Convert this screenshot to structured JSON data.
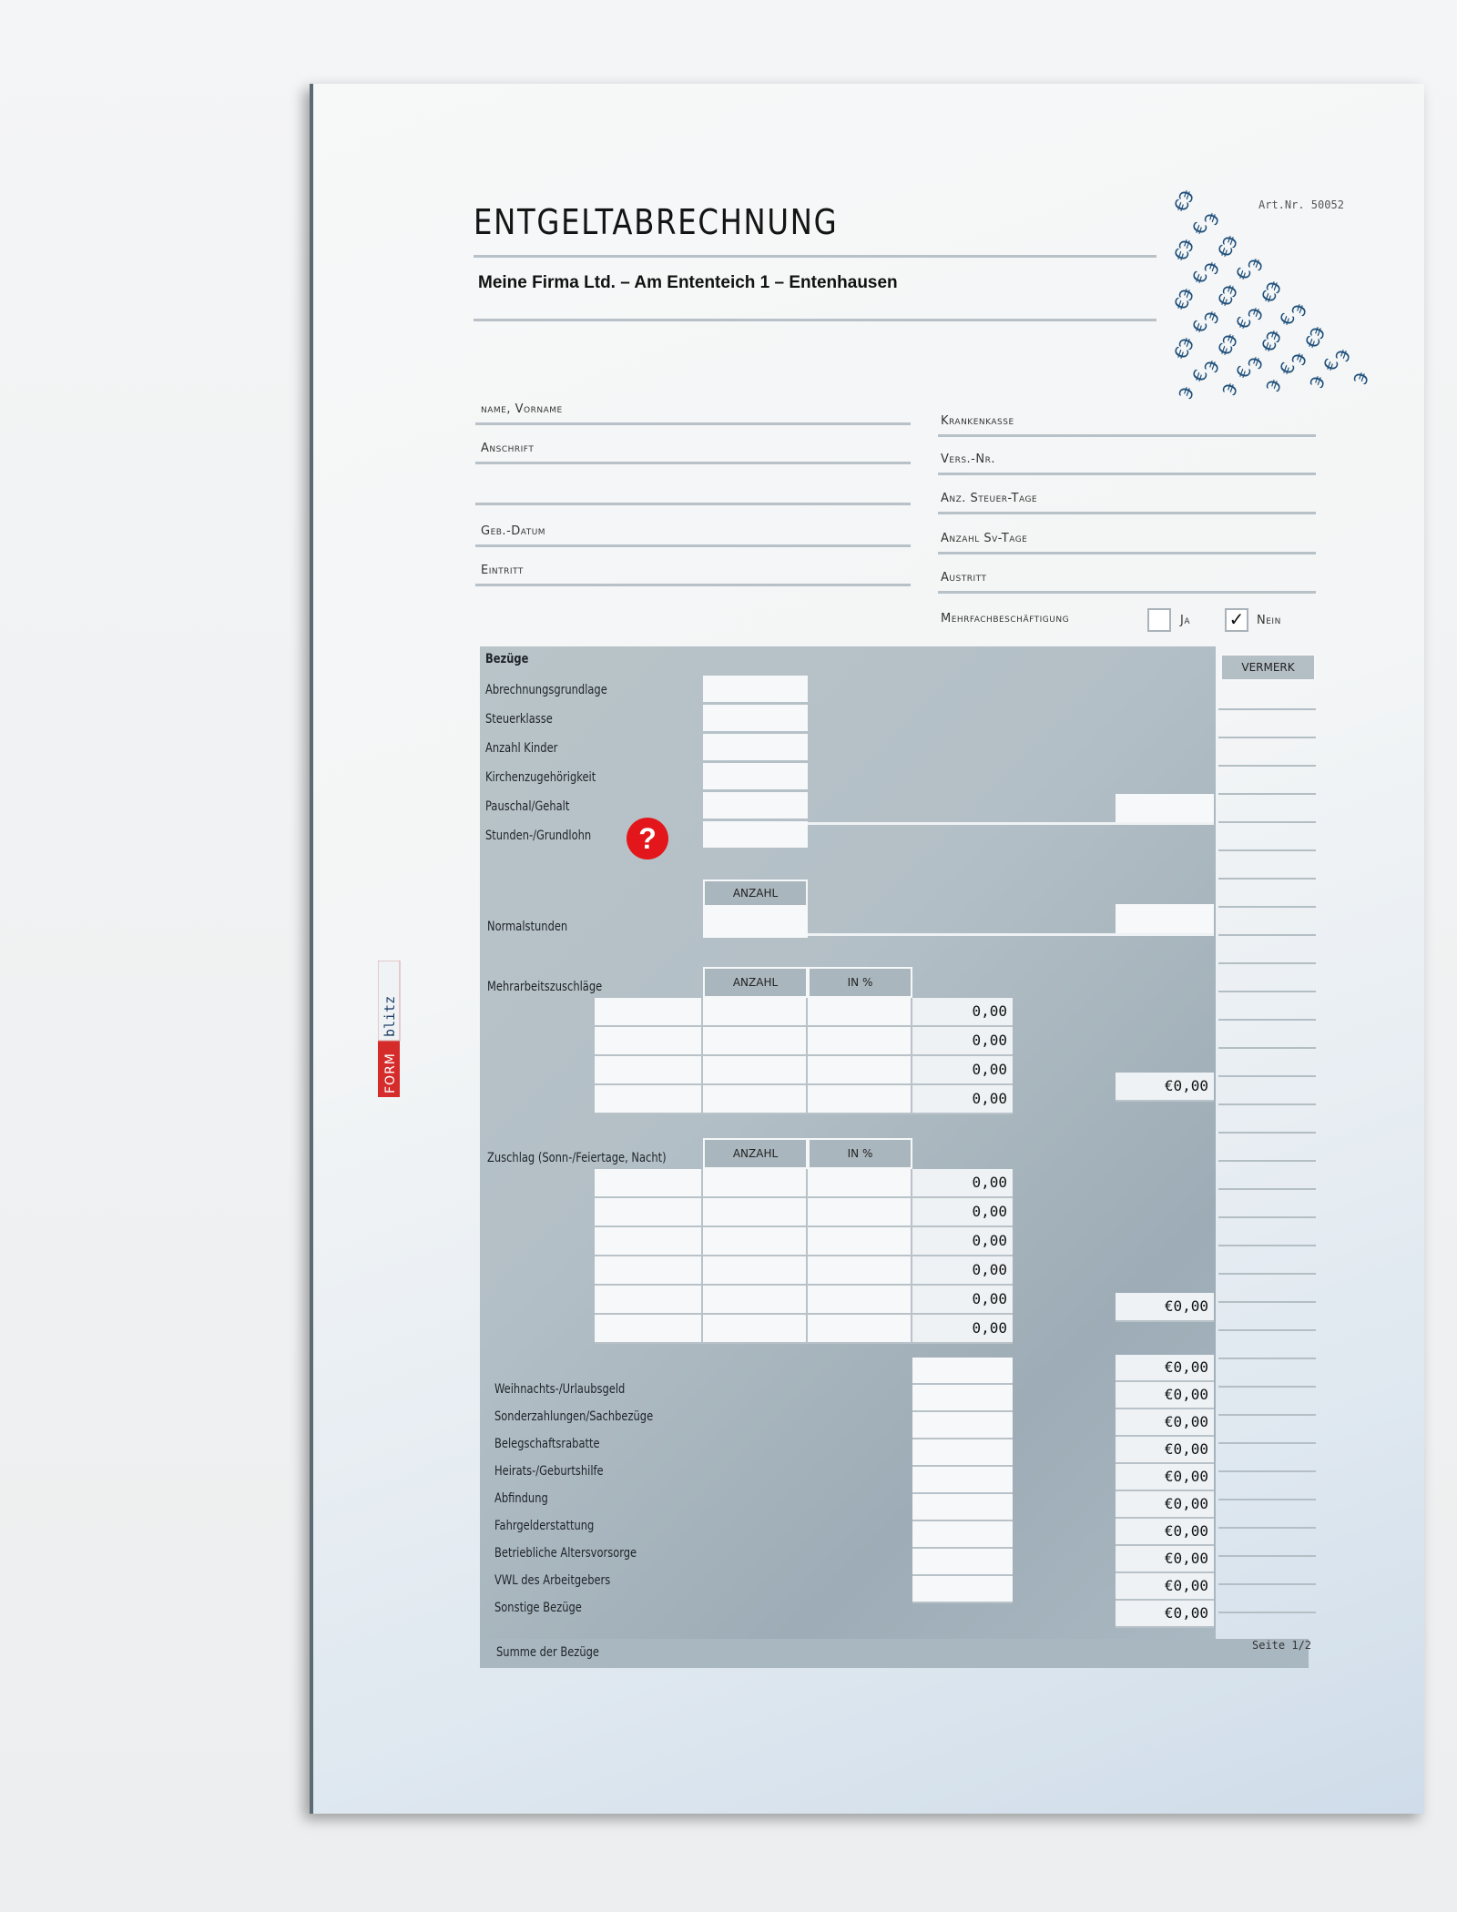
{
  "header": {
    "title": "ENTGELTABRECHNUNG",
    "company": "Meine Firma Ltd. – Am Ententeich 1 – Entenhausen",
    "art_nr": "Art.Nr. 50052"
  },
  "logo": {
    "text_form": "FORM",
    "text_blitz": "blitz",
    "colors": {
      "form": "#d62b2b",
      "blitz": "#1f3f66"
    }
  },
  "personal": {
    "left": [
      {
        "label": "name, Vorname"
      },
      {
        "label": "Anschrift"
      },
      {
        "label": ""
      },
      {
        "label": "Geb.-Datum"
      },
      {
        "label": "Eintritt"
      }
    ],
    "right": [
      {
        "label": "Krankenkasse"
      },
      {
        "label": "Vers.-Nr."
      },
      {
        "label": "Anz. Steuer-Tage"
      },
      {
        "label": "Anzahl Sv-Tage"
      },
      {
        "label": "Austritt"
      }
    ],
    "mehrfach": {
      "label": "Mehrfachbeschäftigung",
      "ja": "Ja",
      "nein": "Nein",
      "ja_checked": false,
      "nein_checked": true,
      "check_mark": "✓"
    }
  },
  "bezuege": {
    "heading": "Bezüge",
    "vermerk": "VERMERK",
    "basis_rows": [
      "Abrechnungsgrundlage",
      "Steuerklasse",
      "Anzahl Kinder",
      "Kirchenzugehörigkeit",
      "Pauschal/Gehalt",
      "Stunden-/Grundlohn"
    ],
    "help_icon": "?",
    "normalstunden": {
      "label": "Normalstunden",
      "col": "ANZAHL"
    },
    "mehrarbeit": {
      "label": "Mehrarbeitszuschläge",
      "cols": [
        "ANZAHL",
        "IN %"
      ],
      "values": [
        "0,00",
        "0,00",
        "0,00",
        "0,00"
      ],
      "total": "€0,00"
    },
    "zuschlag": {
      "label": "Zuschlag (Sonn-/Feiertage, Nacht)",
      "cols": [
        "ANZAHL",
        "IN %"
      ],
      "values": [
        "0,00",
        "0,00",
        "0,00",
        "0,00",
        "0,00",
        "0,00"
      ],
      "total": "€0,00"
    },
    "sonstige_labels": [
      "Weihnachts-/Urlaubsgeld",
      "Sonderzahlungen/Sachbezüge",
      "Belegschaftsrabatte",
      "Heirats-/Geburtshilfe",
      "Abfindung",
      "Fahrgelderstattung",
      "Betriebliche Altersvorsorge",
      "VWL des Arbeitgebers",
      "Sonstige Bezüge"
    ],
    "sonstige_values": [
      "€0,00",
      "€0,00",
      "€0,00",
      "€0,00",
      "€0,00",
      "€0,00",
      "€0,00",
      "€0,00",
      "€0,00",
      "€0,00"
    ],
    "summe": "Summe der Bezüge"
  },
  "footer": {
    "page": "Seite 1/2"
  },
  "colors": {
    "panel": "#b3bfc6",
    "help_icon": "#e3161b",
    "euro_pattern": "#1f4f7a"
  }
}
